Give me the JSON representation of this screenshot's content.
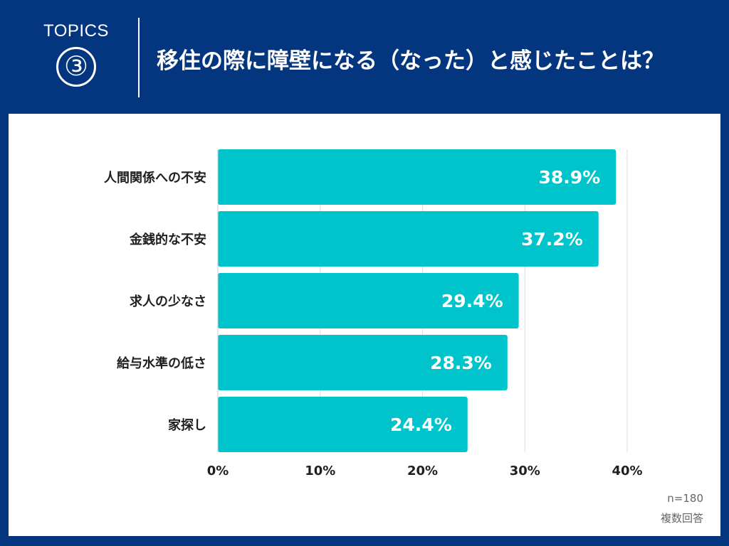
{
  "header": {
    "topics_label": "TOPICS",
    "topics_number": "③",
    "title": "移住の際に障壁になる（なった）と感じたことは？"
  },
  "colors": {
    "background": "#04367f",
    "bar": "#00c4cc",
    "panel": "#ffffff"
  },
  "chart_data": {
    "type": "bar",
    "orientation": "horizontal",
    "title": "移住の際に障壁になる（なった）と感じたことは？",
    "categories": [
      "人間関係への不安",
      "金銭的な不安",
      "求人の少なさ",
      "給与水準の低さ",
      "家探し"
    ],
    "values": [
      38.9,
      37.2,
      29.4,
      28.3,
      24.4
    ],
    "value_labels": [
      "38.9%",
      "37.2%",
      "29.4%",
      "28.3%",
      "24.4%"
    ],
    "xlim": [
      0,
      40
    ],
    "ticks": [
      0,
      10,
      20,
      30,
      40
    ],
    "tick_labels": [
      "0%",
      "10%",
      "20%",
      "30%",
      "40%"
    ],
    "grid": true,
    "unit": "%"
  },
  "notes": {
    "sample_size": "n=180",
    "multiple_answers": "複数回答"
  }
}
